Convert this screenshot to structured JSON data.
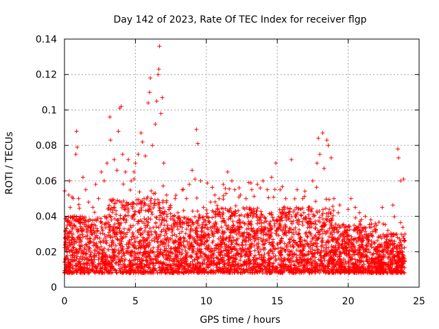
{
  "chart_data": {
    "type": "scatter",
    "title": "Day 142 of 2023, Rate Of TEC Index for receiver flgp",
    "xlabel": "GPS time / hours",
    "ylabel": "ROTI / TECUs",
    "xlim": [
      0,
      25
    ],
    "ylim": [
      0,
      0.14
    ],
    "xticks": [
      0,
      5,
      10,
      15,
      20,
      25
    ],
    "yticks": [
      0,
      0.02,
      0.04,
      0.06,
      0.08,
      0.1,
      0.12,
      0.14
    ],
    "xtick_labels": [
      "0",
      "5",
      "10",
      "15",
      "20",
      "25"
    ],
    "ytick_labels": [
      "0",
      "0.02",
      "0.04",
      "0.06",
      "0.08",
      "0.1",
      "0.12",
      "0.14"
    ],
    "grid": true,
    "marker": "+",
    "series": [
      {
        "name": "ROTI",
        "color": "#ff0000",
        "sampling": "dense cloud, approx. 0.008-0.05 TECU across 0-24 h; representative points listed",
        "points": [
          [
            0.0,
            0.014
          ],
          [
            0.1,
            0.021
          ],
          [
            0.2,
            0.035
          ],
          [
            0.3,
            0.052
          ],
          [
            0.35,
            0.06
          ],
          [
            0.4,
            0.045
          ],
          [
            0.5,
            0.03
          ],
          [
            0.6,
            0.018
          ],
          [
            0.7,
            0.04
          ],
          [
            0.8,
            0.075
          ],
          [
            0.85,
            0.088
          ],
          [
            0.9,
            0.079
          ],
          [
            1.0,
            0.05
          ],
          [
            1.1,
            0.038
          ],
          [
            1.3,
            0.062
          ],
          [
            1.5,
            0.055
          ],
          [
            1.7,
            0.048
          ],
          [
            1.9,
            0.03
          ],
          [
            2.0,
            0.045
          ],
          [
            2.2,
            0.058
          ],
          [
            2.4,
            0.05
          ],
          [
            2.6,
            0.065
          ],
          [
            2.8,
            0.06
          ],
          [
            3.0,
            0.07
          ],
          [
            3.2,
            0.096
          ],
          [
            3.25,
            0.083
          ],
          [
            3.5,
            0.072
          ],
          [
            3.7,
            0.066
          ],
          [
            3.8,
            0.088
          ],
          [
            3.9,
            0.101
          ],
          [
            4.0,
            0.102
          ],
          [
            4.1,
            0.075
          ],
          [
            4.3,
            0.065
          ],
          [
            4.5,
            0.072
          ],
          [
            4.7,
            0.06
          ],
          [
            4.9,
            0.065
          ],
          [
            5.0,
            0.07
          ],
          [
            5.2,
            0.075
          ],
          [
            5.4,
            0.087
          ],
          [
            5.5,
            0.082
          ],
          [
            5.7,
            0.074
          ],
          [
            5.9,
            0.104
          ],
          [
            6.0,
            0.11
          ],
          [
            6.05,
            0.118
          ],
          [
            6.2,
            0.08
          ],
          [
            6.4,
            0.092
          ],
          [
            6.5,
            0.105
          ],
          [
            6.6,
            0.12
          ],
          [
            6.65,
            0.123
          ],
          [
            6.7,
            0.136
          ],
          [
            6.8,
            0.098
          ],
          [
            6.9,
            0.107
          ],
          [
            7.0,
            0.07
          ],
          [
            7.2,
            0.052
          ],
          [
            7.4,
            0.045
          ],
          [
            7.6,
            0.04
          ],
          [
            7.8,
            0.05
          ],
          [
            8.0,
            0.042
          ],
          [
            8.3,
            0.055
          ],
          [
            8.6,
            0.05
          ],
          [
            8.8,
            0.058
          ],
          [
            9.0,
            0.066
          ],
          [
            9.2,
            0.061
          ],
          [
            9.3,
            0.089
          ],
          [
            9.4,
            0.081
          ],
          [
            9.6,
            0.06
          ],
          [
            9.8,
            0.045
          ],
          [
            10.0,
            0.04
          ],
          [
            10.3,
            0.048
          ],
          [
            10.6,
            0.052
          ],
          [
            10.9,
            0.05
          ],
          [
            11.2,
            0.058
          ],
          [
            11.5,
            0.065
          ],
          [
            11.8,
            0.06
          ],
          [
            12.0,
            0.055
          ],
          [
            12.4,
            0.052
          ],
          [
            12.8,
            0.05
          ],
          [
            13.2,
            0.055
          ],
          [
            13.6,
            0.058
          ],
          [
            13.8,
            0.056
          ],
          [
            14.0,
            0.06
          ],
          [
            14.3,
            0.055
          ],
          [
            14.6,
            0.062
          ],
          [
            14.9,
            0.07
          ],
          [
            15.2,
            0.055
          ],
          [
            15.6,
            0.05
          ],
          [
            16.0,
            0.072
          ],
          [
            16.4,
            0.055
          ],
          [
            16.8,
            0.05
          ],
          [
            17.2,
            0.045
          ],
          [
            17.5,
            0.06
          ],
          [
            17.8,
            0.07
          ],
          [
            17.9,
            0.084
          ],
          [
            18.0,
            0.075
          ],
          [
            18.2,
            0.087
          ],
          [
            18.3,
            0.067
          ],
          [
            18.5,
            0.083
          ],
          [
            18.6,
            0.08
          ],
          [
            18.8,
            0.073
          ],
          [
            19.0,
            0.05
          ],
          [
            19.3,
            0.042
          ],
          [
            19.6,
            0.035
          ],
          [
            19.9,
            0.03
          ],
          [
            20.2,
            0.05
          ],
          [
            20.5,
            0.045
          ],
          [
            20.8,
            0.042
          ],
          [
            21.2,
            0.04
          ],
          [
            21.6,
            0.038
          ],
          [
            22.0,
            0.035
          ],
          [
            22.4,
            0.045
          ],
          [
            22.8,
            0.032
          ],
          [
            23.2,
            0.03
          ],
          [
            23.5,
            0.078
          ],
          [
            23.55,
            0.073
          ],
          [
            23.7,
            0.06
          ],
          [
            23.9,
            0.061
          ],
          [
            24.0,
            0.03
          ]
        ]
      }
    ]
  }
}
